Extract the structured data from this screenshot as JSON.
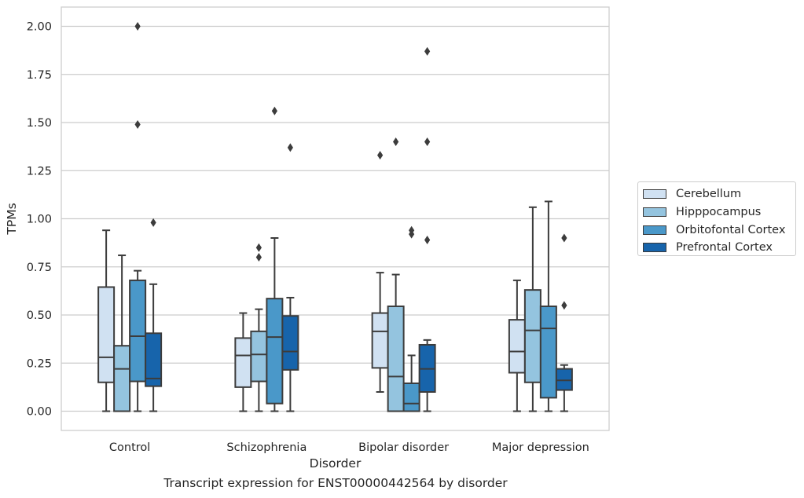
{
  "chart_data": {
    "type": "boxplot",
    "caption": "Transcript expression for ENST00000442564 by disorder",
    "xlabel": "Disorder",
    "ylabel": "TPMs",
    "ylim": [
      -0.1,
      2.1
    ],
    "yticks": [
      "0.00",
      "0.25",
      "0.50",
      "0.75",
      "1.00",
      "1.25",
      "1.50",
      "1.75",
      "2.00"
    ],
    "grid": true,
    "legend_position": "right",
    "categories": [
      "Control",
      "Schizophrenia",
      "Bipolar disorder",
      "Major depression"
    ],
    "series": [
      {
        "name": "Cerebellum",
        "color": "#d0e1f2",
        "boxes": [
          {
            "whisker_low": 0.0,
            "q1": 0.15,
            "median": 0.28,
            "q3": 0.645,
            "whisker_high": 0.94,
            "outliers": []
          },
          {
            "whisker_low": 0.0,
            "q1": 0.125,
            "median": 0.29,
            "q3": 0.38,
            "whisker_high": 0.51,
            "outliers": []
          },
          {
            "whisker_low": 0.1,
            "q1": 0.225,
            "median": 0.415,
            "q3": 0.51,
            "whisker_high": 0.72,
            "outliers": [
              1.33
            ]
          },
          {
            "whisker_low": 0.0,
            "q1": 0.2,
            "median": 0.31,
            "q3": 0.475,
            "whisker_high": 0.68,
            "outliers": []
          }
        ]
      },
      {
        "name": "Hipppocampus",
        "color": "#94c4df",
        "boxes": [
          {
            "whisker_low": 0.0,
            "q1": 0.0,
            "median": 0.22,
            "q3": 0.34,
            "whisker_high": 0.81,
            "outliers": []
          },
          {
            "whisker_low": 0.0,
            "q1": 0.155,
            "median": 0.295,
            "q3": 0.415,
            "whisker_high": 0.53,
            "outliers": [
              0.8,
              0.85
            ]
          },
          {
            "whisker_low": 0.0,
            "q1": 0.0,
            "median": 0.18,
            "q3": 0.545,
            "whisker_high": 0.71,
            "outliers": [
              1.4
            ]
          },
          {
            "whisker_low": 0.0,
            "q1": 0.15,
            "median": 0.42,
            "q3": 0.63,
            "whisker_high": 1.06,
            "outliers": []
          }
        ]
      },
      {
        "name": "Orbitofontal Cortex",
        "color": "#4a98c9",
        "boxes": [
          {
            "whisker_low": 0.0,
            "q1": 0.155,
            "median": 0.39,
            "q3": 0.68,
            "whisker_high": 0.73,
            "outliers": [
              1.49,
              2.0
            ]
          },
          {
            "whisker_low": 0.0,
            "q1": 0.04,
            "median": 0.385,
            "q3": 0.585,
            "whisker_high": 0.9,
            "outliers": [
              1.56
            ]
          },
          {
            "whisker_low": 0.0,
            "q1": 0.0,
            "median": 0.04,
            "q3": 0.145,
            "whisker_high": 0.29,
            "outliers": [
              0.92,
              0.94
            ]
          },
          {
            "whisker_low": 0.0,
            "q1": 0.07,
            "median": 0.43,
            "q3": 0.545,
            "whisker_high": 1.09,
            "outliers": []
          }
        ]
      },
      {
        "name": "Prefrontal Cortex",
        "color": "#1764ab",
        "boxes": [
          {
            "whisker_low": 0.0,
            "q1": 0.13,
            "median": 0.17,
            "q3": 0.405,
            "whisker_high": 0.66,
            "outliers": [
              0.98
            ]
          },
          {
            "whisker_low": 0.0,
            "q1": 0.215,
            "median": 0.31,
            "q3": 0.495,
            "whisker_high": 0.59,
            "outliers": [
              1.37
            ]
          },
          {
            "whisker_low": 0.0,
            "q1": 0.1,
            "median": 0.22,
            "q3": 0.345,
            "whisker_high": 0.37,
            "outliers": [
              0.89,
              1.4,
              1.87
            ]
          },
          {
            "whisker_low": 0.0,
            "q1": 0.11,
            "median": 0.16,
            "q3": 0.22,
            "whisker_high": 0.24,
            "outliers": [
              0.55,
              0.9
            ]
          }
        ]
      }
    ]
  }
}
